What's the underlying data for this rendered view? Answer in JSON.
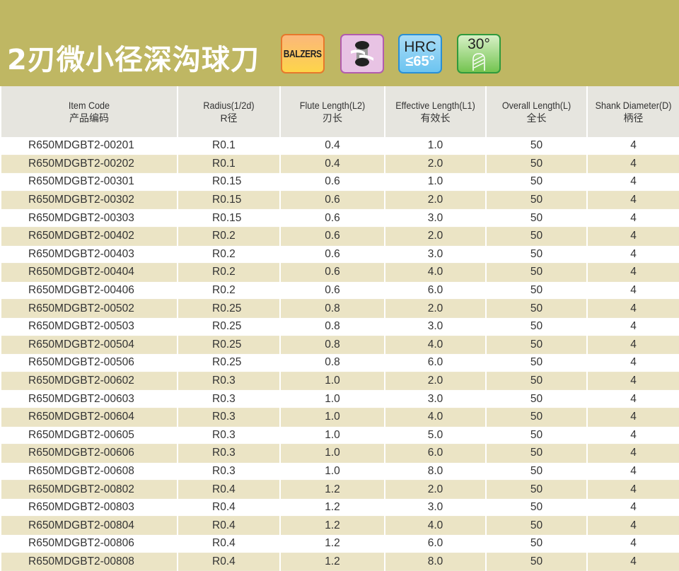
{
  "header": {
    "title": "2刃微小径深沟球刀",
    "badges": [
      {
        "icon": "balzers-coating-icon",
        "text": "BALZERS",
        "color": "#fdc45f"
      },
      {
        "icon": "ball-end-profile-icon",
        "color": "#e8c3e4"
      },
      {
        "icon": "hrc-hardness-icon",
        "line1": "HRC",
        "line2": "≤65°",
        "color": "#8ed1f4"
      },
      {
        "icon": "helix-angle-icon",
        "line1": "30°",
        "color": "#9fd57f"
      }
    ],
    "colors": {
      "band": "#bfb763",
      "header_row": "#e6e5df",
      "stripe": "#ebe4c5"
    }
  },
  "table": {
    "columns": [
      {
        "en": "Item Code",
        "cn": "产品编码"
      },
      {
        "en": "Radius(1/2d)",
        "cn": "R径"
      },
      {
        "en": "Flute Length(L2)",
        "cn": "刃长"
      },
      {
        "en": "Effective Length(L1)",
        "cn": "有效长"
      },
      {
        "en": "Overall Length(L)",
        "cn": "全长"
      },
      {
        "en": "Shank Diameter(D)",
        "cn": "柄径"
      }
    ],
    "rows": [
      [
        "R650MDGBT2-00201",
        "R0.1",
        "0.4",
        "1.0",
        "50",
        "4"
      ],
      [
        "R650MDGBT2-00202",
        "R0.1",
        "0.4",
        "2.0",
        "50",
        "4"
      ],
      [
        "R650MDGBT2-00301",
        "R0.15",
        "0.6",
        "1.0",
        "50",
        "4"
      ],
      [
        "R650MDGBT2-00302",
        "R0.15",
        "0.6",
        "2.0",
        "50",
        "4"
      ],
      [
        "R650MDGBT2-00303",
        "R0.15",
        "0.6",
        "3.0",
        "50",
        "4"
      ],
      [
        "R650MDGBT2-00402",
        "R0.2",
        "0.6",
        "2.0",
        "50",
        "4"
      ],
      [
        "R650MDGBT2-00403",
        "R0.2",
        "0.6",
        "3.0",
        "50",
        "4"
      ],
      [
        "R650MDGBT2-00404",
        "R0.2",
        "0.6",
        "4.0",
        "50",
        "4"
      ],
      [
        "R650MDGBT2-00406",
        "R0.2",
        "0.6",
        "6.0",
        "50",
        "4"
      ],
      [
        "R650MDGBT2-00502",
        "R0.25",
        "0.8",
        "2.0",
        "50",
        "4"
      ],
      [
        "R650MDGBT2-00503",
        "R0.25",
        "0.8",
        "3.0",
        "50",
        "4"
      ],
      [
        "R650MDGBT2-00504",
        "R0.25",
        "0.8",
        "4.0",
        "50",
        "4"
      ],
      [
        "R650MDGBT2-00506",
        "R0.25",
        "0.8",
        "6.0",
        "50",
        "4"
      ],
      [
        "R650MDGBT2-00602",
        "R0.3",
        "1.0",
        "2.0",
        "50",
        "4"
      ],
      [
        "R650MDGBT2-00603",
        "R0.3",
        "1.0",
        "3.0",
        "50",
        "4"
      ],
      [
        "R650MDGBT2-00604",
        "R0.3",
        "1.0",
        "4.0",
        "50",
        "4"
      ],
      [
        "R650MDGBT2-00605",
        "R0.3",
        "1.0",
        "5.0",
        "50",
        "4"
      ],
      [
        "R650MDGBT2-00606",
        "R0.3",
        "1.0",
        "6.0",
        "50",
        "4"
      ],
      [
        "R650MDGBT2-00608",
        "R0.3",
        "1.0",
        "8.0",
        "50",
        "4"
      ],
      [
        "R650MDGBT2-00802",
        "R0.4",
        "1.2",
        "2.0",
        "50",
        "4"
      ],
      [
        "R650MDGBT2-00803",
        "R0.4",
        "1.2",
        "3.0",
        "50",
        "4"
      ],
      [
        "R650MDGBT2-00804",
        "R0.4",
        "1.2",
        "4.0",
        "50",
        "4"
      ],
      [
        "R650MDGBT2-00806",
        "R0.4",
        "1.2",
        "6.0",
        "50",
        "4"
      ],
      [
        "R650MDGBT2-00808",
        "R0.4",
        "1.2",
        "8.0",
        "50",
        "4"
      ]
    ]
  }
}
